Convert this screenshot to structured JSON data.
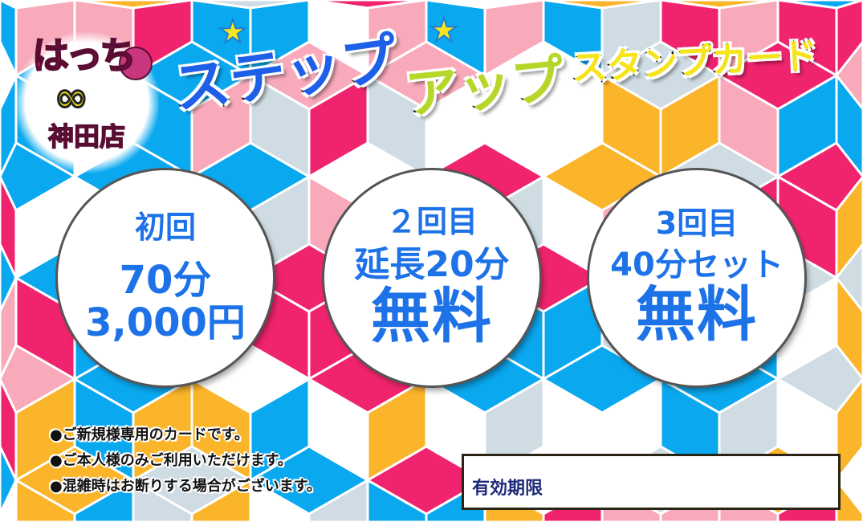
{
  "colors": {
    "pink": "#f0246e",
    "light_pink": "#f8aabb",
    "blue": "#0aa8ef",
    "yellow": "#fbb52a",
    "grey": "#cfdce4",
    "white": "#ffffff",
    "text_blue": "#1d72e8"
  },
  "logo": {
    "name": "はっち",
    "symbol": "∞",
    "store": "神田店"
  },
  "title": {
    "part1": "ステップ",
    "part2": "アップ",
    "part3": "スタンプカード"
  },
  "stamps": [
    {
      "label": "初回",
      "line1": "70分",
      "line2": "3,000円"
    },
    {
      "label": "２回目",
      "line1": "延長20分",
      "line2": "無料"
    },
    {
      "label": "3回目",
      "line1": "40分セット",
      "line2": "無料"
    }
  ],
  "notes": [
    "●ご新規様専用のカードです。",
    "●ご本人様のみご利用いただけます。",
    "●混雑時はお断りする場合がございます。"
  ],
  "expiry": {
    "label": "有効期限"
  }
}
